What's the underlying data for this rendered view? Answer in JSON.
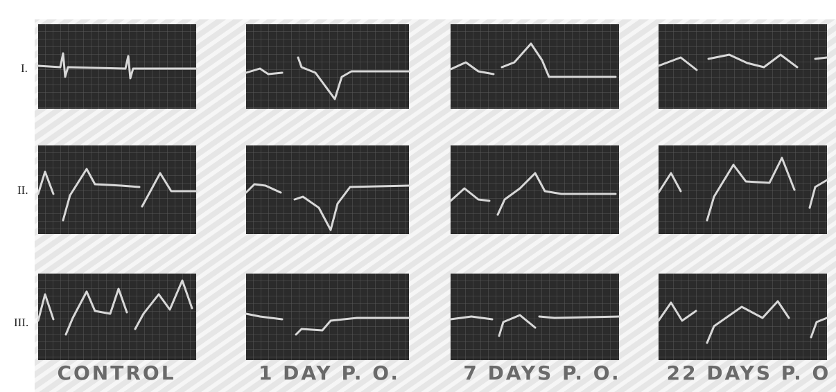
{
  "rows": [
    "I.",
    "II.",
    "III."
  ],
  "columns": [
    "CONTROL",
    "1 DAY P. O.",
    "7 DAYS P. O.",
    "22 DAYS P. O"
  ]
}
